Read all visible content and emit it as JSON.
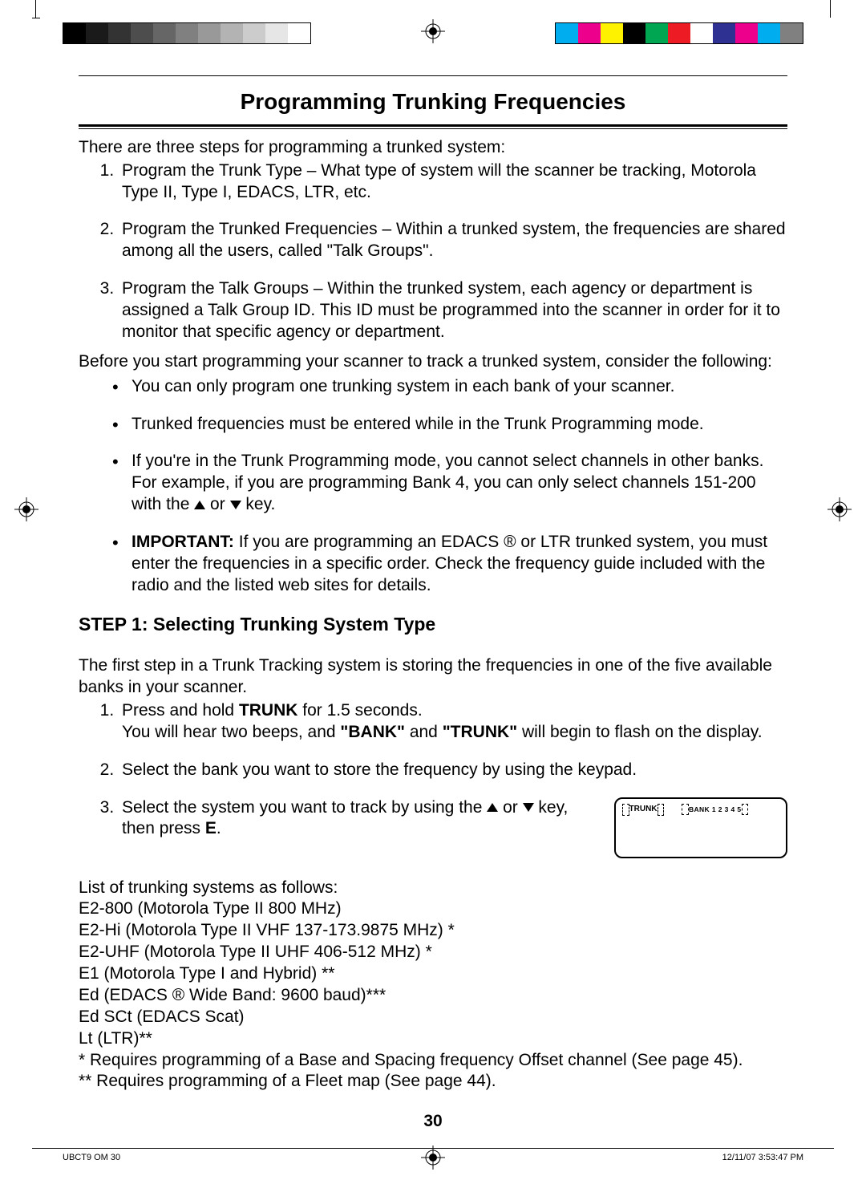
{
  "colors": {
    "grayscale": [
      "#000000",
      "#1a1a1a",
      "#333333",
      "#4d4d4d",
      "#666666",
      "#808080",
      "#999999",
      "#b3b3b3",
      "#cccccc",
      "#e6e6e6",
      "#ffffff"
    ],
    "colorbar": [
      "#00aeef",
      "#ec008c",
      "#fff200",
      "#000000",
      "#00a651",
      "#ed1c24",
      "#ffffff",
      "#2e3192",
      "#ec008c",
      "#00aeef",
      "#808080"
    ]
  },
  "title": "Programming Trunking Frequencies",
  "intro": "There are three steps for programming a trunked system:",
  "steps_overview": [
    "Program the Trunk Type – What type of system will the scanner be tracking, Motorola Type II, Type I, EDACS, LTR, etc.",
    "Program the Trunked Frequencies – Within a trunked system, the frequencies are shared among all the users, called \"Talk Groups\".",
    "Program the Talk Groups – Within the trunked system, each agency or department is assigned a Talk Group ID. This ID must be programmed into the scanner in order for it to monitor that specific agency or department."
  ],
  "consider_lead": "Before you start programming your scanner to track a trunked system, consider the following:",
  "consider": [
    {
      "pre": "",
      "text": "You can only program one trunking system in each bank of your scanner."
    },
    {
      "pre": "",
      "text": "Trunked frequencies must be entered while in the Trunk Programming mode."
    },
    {
      "pre": "",
      "text_a": "If you're in the Trunk Programming mode, you cannot select channels in other banks. For example, if you are programming Bank 4, you can only select channels 151-200 with the  ",
      "text_b": " or ",
      "text_c": "  key."
    },
    {
      "important": "IMPORTANT:",
      "text": " If you are programming an EDACS ® or LTR trunked system, you must enter the frequencies in a specific order. Check the frequency guide included with the radio and the listed web sites for details."
    }
  ],
  "step1_heading": "STEP 1: Selecting Trunking System Type",
  "step1_intro": "The first step in a Trunk Tracking system is storing the frequencies in one of the five available banks in your scanner.",
  "step1_list": [
    {
      "a": "Press and hold ",
      "b": "TRUNK",
      "c": " for 1.5 seconds.",
      "line2_a": "You will hear two beeps, and ",
      "line2_b": "\"BANK\"",
      "line2_c": " and ",
      "line2_d": "\"TRUNK\"",
      "line2_e": " will begin to flash on the display."
    },
    {
      "text": "Select the bank you want to store the frequency by using the keypad."
    },
    {
      "a": "Select the system you want to track by using the ",
      "b": " or ",
      "c": "  key, then press ",
      "d": "E",
      "e": "."
    }
  ],
  "lcd": {
    "trunk": "TRUNK",
    "bank": "BANK 1 2 3 4 5"
  },
  "syslist_lead": "List of trunking systems as follows:",
  "syslist": [
    "E2-800 (Motorola Type II 800 MHz)",
    "E2-Hi (Motorola Type II VHF 137-173.9875 MHz) *",
    "E2-UHF (Motorola Type II UHF 406-512 MHz) *",
    "E1 (Motorola Type I and Hybrid) **",
    "Ed (EDACS ® Wide Band: 9600 baud)***",
    "Ed SCt (EDACS Scat)",
    "Lt (LTR)**"
  ],
  "footnotes": [
    "* Requires programming of a Base and Spacing frequency Offset channel (See page 45).",
    "** Requires programming of a Fleet map (See page 44)."
  ],
  "pagenum": "30",
  "footer_left": "UBCT9 OM   30",
  "footer_right": "12/11/07   3:53:47 PM"
}
